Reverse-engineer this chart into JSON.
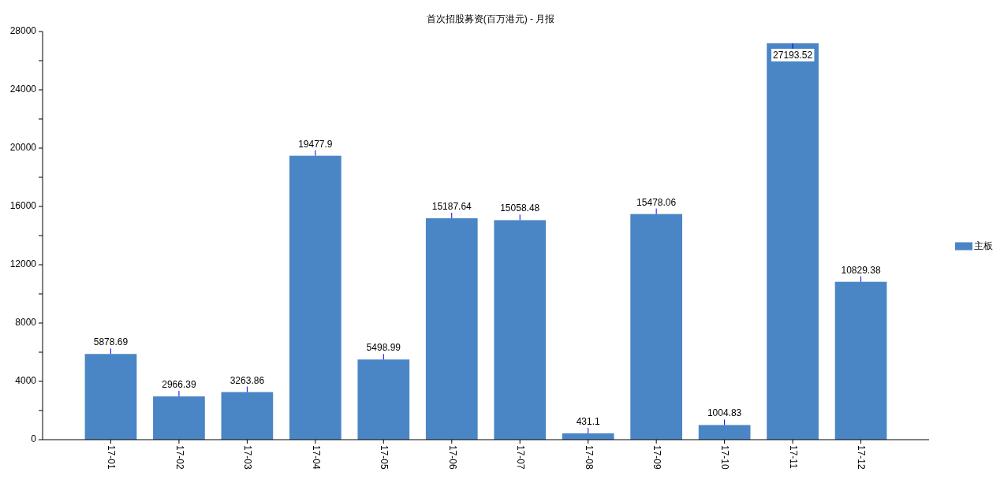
{
  "chart_data": {
    "type": "bar",
    "title": "首次招股募资(百万港元) - 月报",
    "categories": [
      "17-01",
      "17-02",
      "17-03",
      "17-04",
      "17-05",
      "17-06",
      "17-07",
      "17-08",
      "17-09",
      "17-10",
      "17-11",
      "17-12"
    ],
    "series": [
      {
        "name": "主板",
        "color": "#4a86c5",
        "values": [
          5878.69,
          2966.39,
          3263.86,
          19477.9,
          5498.99,
          15187.64,
          15058.48,
          431.1,
          15478.06,
          1004.83,
          27193.52,
          10829.38
        ]
      }
    ],
    "ylim": [
      0,
      28000
    ],
    "yticks": [
      0,
      {
        "value": 2000,
        "label": null
      },
      4000,
      {
        "value": 6000,
        "label": null
      },
      8000,
      {
        "value": 10000,
        "label": null
      },
      12000,
      {
        "value": 14000,
        "label": null
      },
      16000,
      {
        "value": 18000,
        "label": null
      },
      20000,
      {
        "value": 22000,
        "label": null
      },
      24000,
      {
        "value": 26000,
        "label": null
      },
      28000
    ],
    "data_labels": true,
    "legend": "right"
  }
}
